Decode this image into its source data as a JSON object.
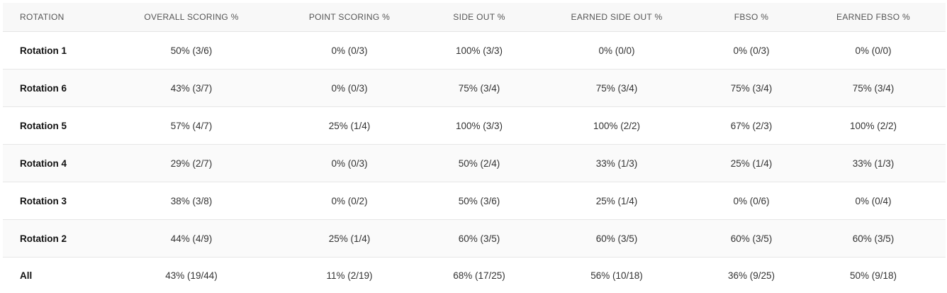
{
  "table": {
    "headers": [
      "ROTATION",
      "OVERALL SCORING %",
      "POINT SCORING %",
      "SIDE OUT %",
      "EARNED SIDE OUT %",
      "FBSO %",
      "EARNED FBSO %"
    ],
    "rows": [
      [
        "Rotation 1",
        "50% (3/6)",
        "0% (0/3)",
        "100% (3/3)",
        "0% (0/0)",
        "0% (0/3)",
        "0% (0/0)"
      ],
      [
        "Rotation 6",
        "43% (3/7)",
        "0% (0/3)",
        "75% (3/4)",
        "75% (3/4)",
        "75% (3/4)",
        "75% (3/4)"
      ],
      [
        "Rotation 5",
        "57% (4/7)",
        "25% (1/4)",
        "100% (3/3)",
        "100% (2/2)",
        "67% (2/3)",
        "100% (2/2)"
      ],
      [
        "Rotation 4",
        "29% (2/7)",
        "0% (0/3)",
        "50% (2/4)",
        "33% (1/3)",
        "25% (1/4)",
        "33% (1/3)"
      ],
      [
        "Rotation 3",
        "38% (3/8)",
        "0% (0/2)",
        "50% (3/6)",
        "25% (1/4)",
        "0% (0/6)",
        "0% (0/4)"
      ],
      [
        "Rotation 2",
        "44% (4/9)",
        "25% (1/4)",
        "60% (3/5)",
        "60% (3/5)",
        "60% (3/5)",
        "60% (3/5)"
      ],
      [
        "All",
        "43% (19/44)",
        "11% (2/19)",
        "68% (17/25)",
        "56% (10/18)",
        "36% (9/25)",
        "50% (9/18)"
      ]
    ]
  }
}
